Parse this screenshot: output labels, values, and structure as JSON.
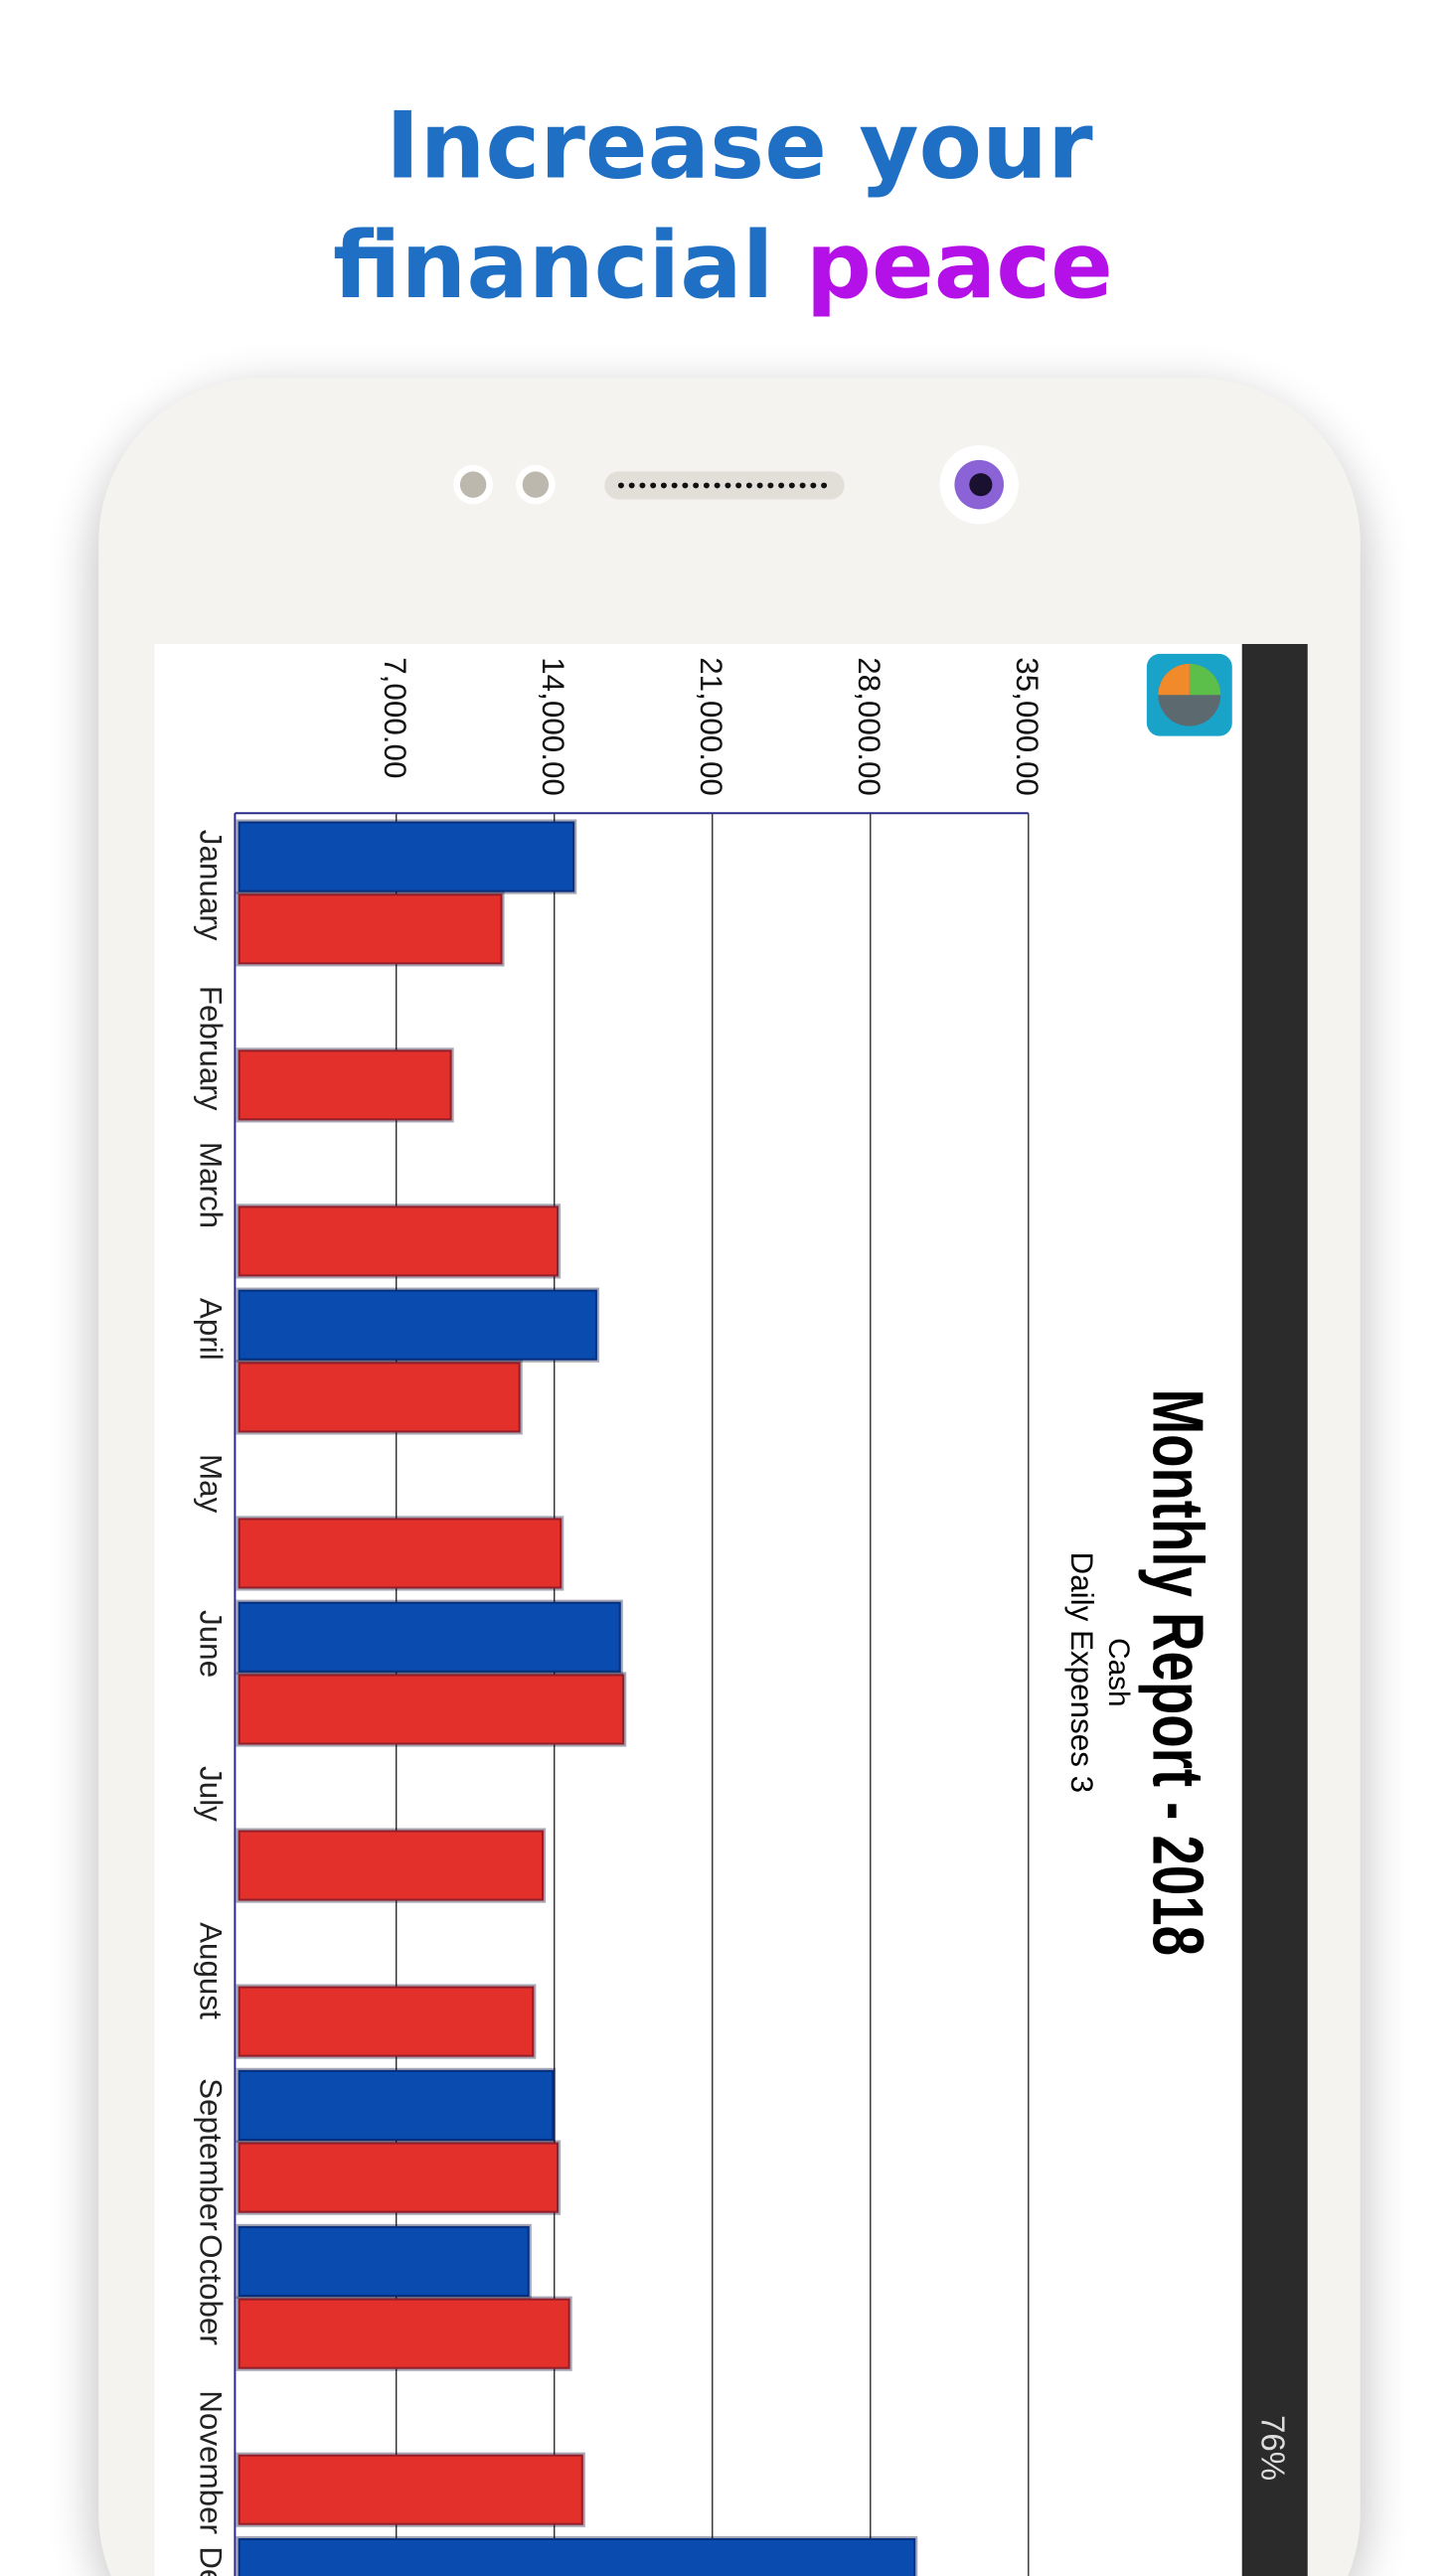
{
  "headline": {
    "line1": "Increase your",
    "line2a": "financial",
    "line2b": "peace"
  },
  "status_bar": {
    "battery": "76%"
  },
  "chart_data": {
    "type": "bar",
    "orientation": "rotated",
    "title": "Monthly Report - 2018",
    "subtitle": "Cash",
    "subtitle2": "Daily Expenses 3",
    "categories": [
      "January",
      "February",
      "March",
      "April",
      "May",
      "June",
      "July",
      "August",
      "September",
      "October",
      "November",
      "December"
    ],
    "series": [
      {
        "color": "#0a4bb0",
        "values": [
          14900,
          null,
          null,
          15900,
          null,
          16950,
          null,
          null,
          13970,
          12900,
          null,
          30000
        ]
      },
      {
        "color": "#e3302b",
        "values": [
          11700,
          9460,
          14190,
          12500,
          14330,
          17100,
          13530,
          13100,
          14190,
          14700,
          15280,
          null
        ]
      }
    ],
    "ylim": [
      0,
      35000
    ],
    "yticks": [
      {
        "value": 7000,
        "label": "7,000.00"
      },
      {
        "value": 14000,
        "label": "14,000.00"
      },
      {
        "value": 21000,
        "label": "21,000.00"
      },
      {
        "value": 28000,
        "label": "28,000.00"
      },
      {
        "value": 35000,
        "label": "35,000.00"
      }
    ],
    "grid": true
  }
}
